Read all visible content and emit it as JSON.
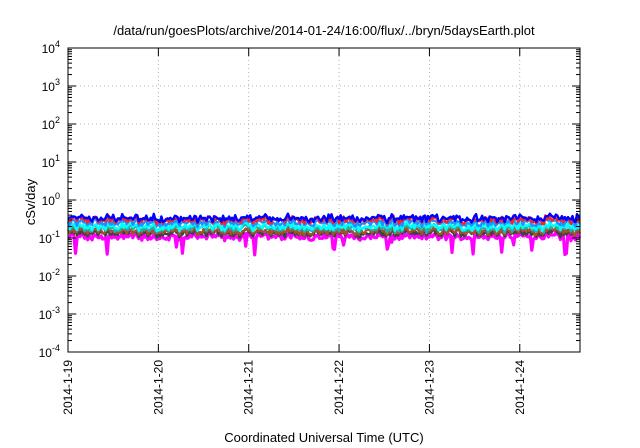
{
  "chart_data": {
    "type": "line",
    "title": "/data/run/goesPlots/archive/2014-01-24/16:00/flux/../bryn/5daysEarth.plot",
    "xlabel": "Coordinated Universal Time (UTC)",
    "ylabel": "cSv/day",
    "y_scale": "log",
    "ylim": [
      0.0001,
      10000
    ],
    "y_ticks": [
      {
        "base": "10",
        "exp": "4",
        "value": 10000
      },
      {
        "base": "10",
        "exp": "3",
        "value": 1000
      },
      {
        "base": "10",
        "exp": "2",
        "value": 100
      },
      {
        "base": "10",
        "exp": "1",
        "value": 10
      },
      {
        "base": "10",
        "exp": "0",
        "value": 1
      },
      {
        "base": "10",
        "exp": "-1",
        "value": 0.1
      },
      {
        "base": "10",
        "exp": "-2",
        "value": 0.01
      },
      {
        "base": "10",
        "exp": "-3",
        "value": 0.001
      },
      {
        "base": "10",
        "exp": "-4",
        "value": 0.0001
      }
    ],
    "xlim": [
      "2014-01-19T00:00",
      "2014-01-24T16:00"
    ],
    "x_ticks": [
      "2014-1-19",
      "2014-1-20",
      "2014-1-21",
      "2014-1-22",
      "2014-1-23",
      "2014-1-24"
    ],
    "grid": true,
    "series": [
      {
        "color": "#ff00ff",
        "level": 0.11
      },
      {
        "color": "#404040",
        "level": 0.135
      },
      {
        "color": "#a0522d",
        "level": 0.15
      },
      {
        "color": "#20b2aa",
        "level": 0.18
      },
      {
        "color": "#00ffff",
        "level": 0.2
      },
      {
        "color": "#1e90ff",
        "level": 0.25
      },
      {
        "color": "#ff2020",
        "level": 0.3
      },
      {
        "color": "#0000ff",
        "level": 0.33
      }
    ]
  }
}
